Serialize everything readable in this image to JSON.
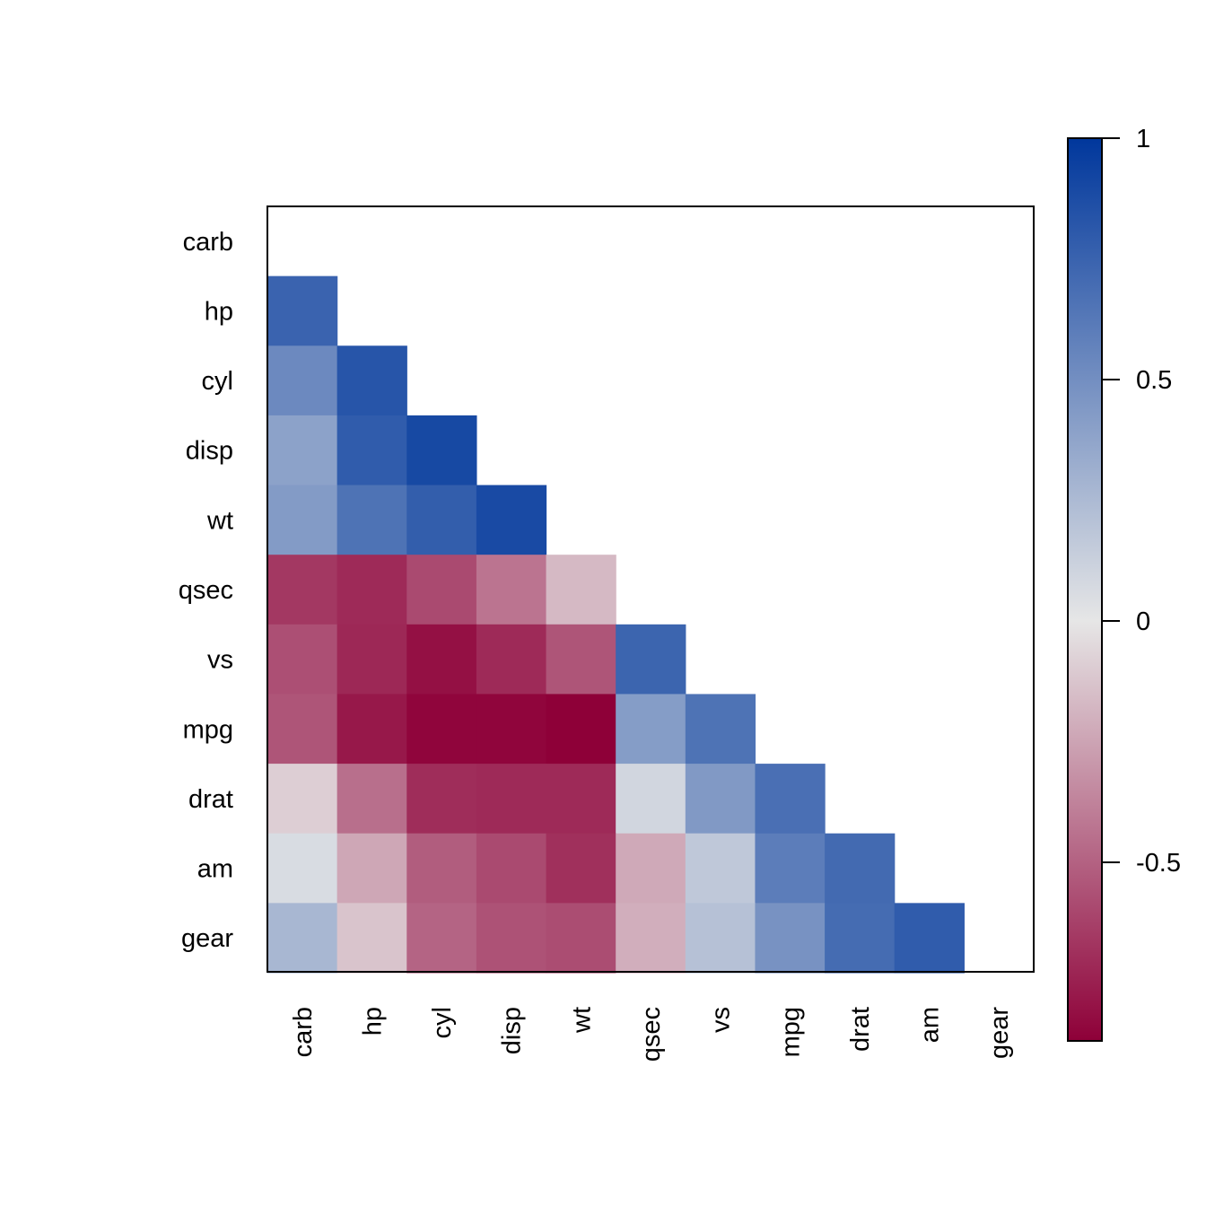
{
  "chart_data": {
    "type": "heatmap",
    "title": "",
    "xlabel": "",
    "ylabel": "",
    "variables": [
      "carb",
      "hp",
      "cyl",
      "disp",
      "wt",
      "qsec",
      "vs",
      "mpg",
      "drat",
      "am",
      "gear"
    ],
    "matrix": [
      [
        null,
        null,
        null,
        null,
        null,
        null,
        null,
        null,
        null,
        null,
        null
      ],
      [
        0.75,
        null,
        null,
        null,
        null,
        null,
        null,
        null,
        null,
        null,
        null
      ],
      [
        0.53,
        0.83,
        null,
        null,
        null,
        null,
        null,
        null,
        null,
        null,
        null
      ],
      [
        0.39,
        0.79,
        0.9,
        null,
        null,
        null,
        null,
        null,
        null,
        null,
        null
      ],
      [
        0.43,
        0.66,
        0.78,
        0.89,
        null,
        null,
        null,
        null,
        null,
        null,
        null
      ],
      [
        -0.66,
        -0.71,
        -0.59,
        -0.43,
        -0.17,
        null,
        null,
        null,
        null,
        null,
        null
      ],
      [
        -0.57,
        -0.72,
        -0.81,
        -0.71,
        -0.55,
        0.74,
        null,
        null,
        null,
        null,
        null
      ],
      [
        -0.55,
        -0.78,
        -0.85,
        -0.85,
        -0.87,
        0.42,
        0.66,
        null,
        null,
        null,
        null
      ],
      [
        -0.09,
        -0.45,
        -0.7,
        -0.71,
        -0.71,
        0.09,
        0.44,
        0.68,
        null,
        null,
        null
      ],
      [
        0.06,
        -0.24,
        -0.52,
        -0.59,
        -0.69,
        -0.23,
        0.17,
        0.6,
        0.71,
        null,
        null
      ],
      [
        0.27,
        -0.13,
        -0.49,
        -0.56,
        -0.58,
        -0.21,
        0.21,
        0.48,
        0.7,
        0.79,
        null
      ]
    ],
    "color_scale": {
      "colors": [
        "#8e0038",
        "#e6e6e6",
        "#00379c"
      ],
      "ticks": [
        1,
        0.5,
        0,
        -0.5
      ],
      "tick_labels": [
        "1",
        "0.5",
        "0",
        "-0.5"
      ],
      "range": [
        -0.87,
        1
      ]
    },
    "grid": false,
    "legend": "right"
  }
}
